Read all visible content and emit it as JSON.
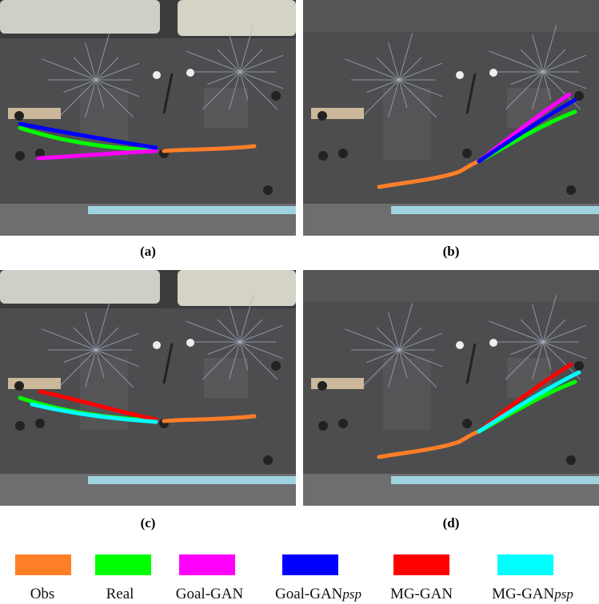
{
  "panels": [
    {
      "label": "(a)",
      "scene": "tram",
      "methods": [
        "Real",
        "Goal-GAN",
        "Goal-GANpsp"
      ]
    },
    {
      "label": "(b)",
      "scene": "plain",
      "methods": [
        "Real",
        "Goal-GAN",
        "Goal-GANpsp"
      ]
    },
    {
      "label": "(c)",
      "scene": "tram",
      "methods": [
        "Real",
        "MG-GAN",
        "MG-GANpsp"
      ]
    },
    {
      "label": "(d)",
      "scene": "plain",
      "methods": [
        "Real",
        "MG-GAN",
        "MG-GANpsp"
      ]
    }
  ],
  "legend": [
    {
      "label": "Obs",
      "sub": "",
      "color": "#ff7f27"
    },
    {
      "label": "Real",
      "sub": "",
      "color": "#00ff00"
    },
    {
      "label": "Goal-GAN",
      "sub": "",
      "color": "#ff00ff"
    },
    {
      "label": "Goal-GAN",
      "sub": "psp",
      "color": "#0000ff"
    },
    {
      "label": "MG-GAN",
      "sub": "",
      "color": "#ff0000"
    },
    {
      "label": "MG-GAN",
      "sub": "psp",
      "color": "#00ffff"
    }
  ]
}
